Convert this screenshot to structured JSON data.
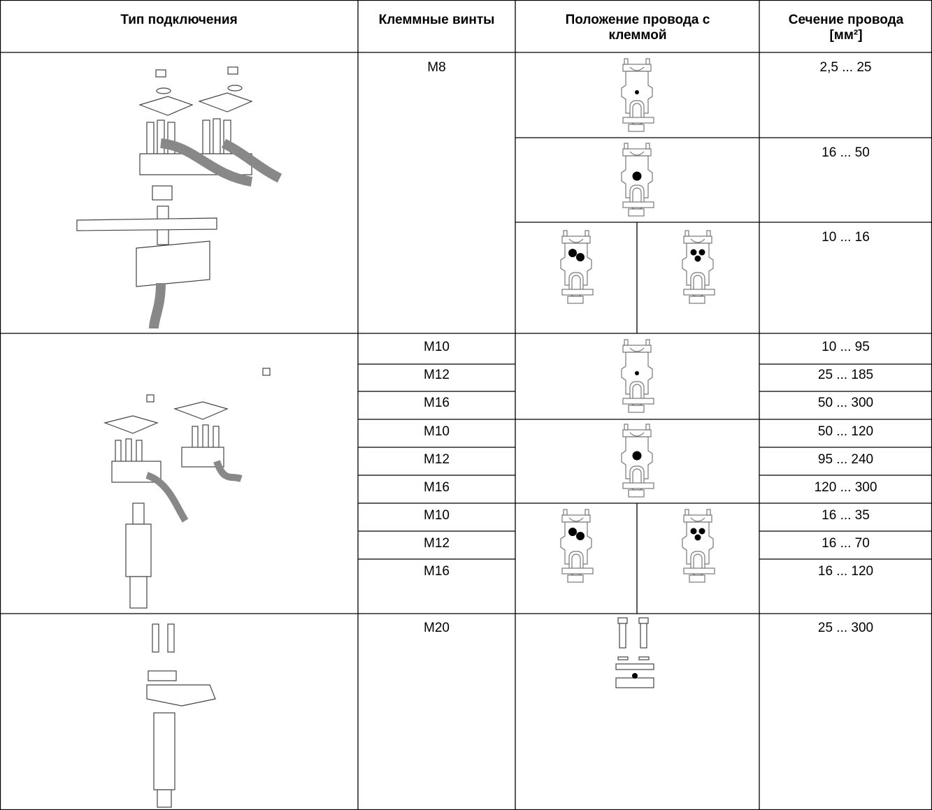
{
  "header": [
    "Тип подключения",
    "Клеммные винты",
    "Положение провода с клеммой",
    "Сечение провода [мм²]"
  ],
  "groups": [
    {
      "screws": [
        "M8"
      ],
      "sections": [
        "2,5 ... 25",
        "16 ... 50",
        "10 ... 16"
      ]
    },
    {
      "screws": [
        "M10",
        "M12",
        "M16",
        "M10",
        "M12",
        "M16",
        "M10",
        "M12",
        "M16"
      ],
      "sections": [
        "10 ... 95",
        "25 ... 185",
        "50 ... 300",
        "50 ... 120",
        "95 ... 240",
        "120 ... 300",
        "16 ... 35",
        "16 ... 70",
        "16 ... 120"
      ]
    },
    {
      "screws": [
        "M20"
      ],
      "sections": [
        "25 ... 300"
      ]
    }
  ]
}
